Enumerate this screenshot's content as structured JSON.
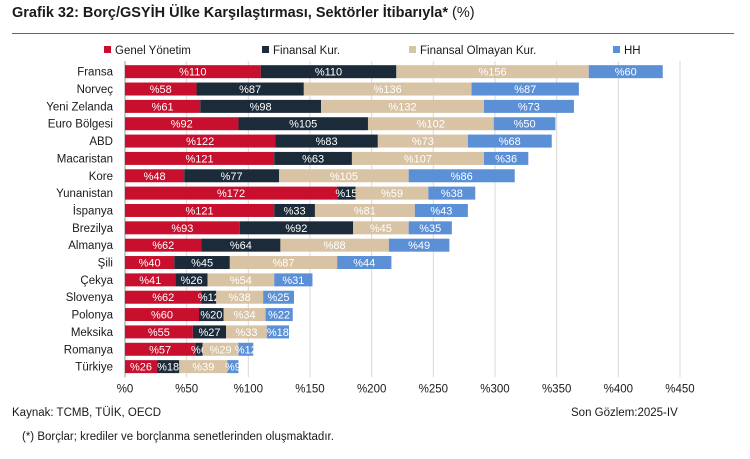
{
  "header": {
    "title": "Grafik 32: Borç/GSYİH Ülke Karşılaştırması, Sektörler İtibarıyla*",
    "unit": "(%)"
  },
  "footer": {
    "source": "Kaynak: TCMB, TÜİK, OECD",
    "observation": "Son Gözlem:2025-IV",
    "note": "(*) Borçlar; krediler ve borçlanma senetlerinden oluşmaktadır."
  },
  "chart_data": {
    "type": "bar",
    "orientation": "horizontal",
    "stacked": true,
    "value_prefix": "%",
    "categories": [
      "Fransa",
      "Norveç",
      "Yeni Zelanda",
      "Euro Bölgesi",
      "ABD",
      "Macaristan",
      "Kore",
      "Yunanistan",
      "İspanya",
      "Brezilya",
      "Almanya",
      "Şili",
      "Çekya",
      "Slovenya",
      "Polonya",
      "Meksika",
      "Romanya",
      "Türkiye"
    ],
    "series": [
      {
        "name": "Genel Yönetim",
        "color": "#c8102e",
        "values": [
          110,
          58,
          61,
          92,
          122,
          121,
          48,
          172,
          121,
          93,
          62,
          40,
          41,
          62,
          60,
          55,
          57,
          26
        ]
      },
      {
        "name": "Finansal Kur.",
        "color": "#1c2b39",
        "values": [
          110,
          87,
          98,
          105,
          83,
          63,
          77,
          15,
          33,
          92,
          64,
          45,
          26,
          12,
          20,
          27,
          6,
          18
        ]
      },
      {
        "name": "Finansal Olmayan Kur.",
        "color": "#d8c3a5",
        "values": [
          156,
          136,
          132,
          102,
          73,
          107,
          105,
          59,
          81,
          45,
          88,
          87,
          54,
          38,
          34,
          33,
          29,
          39
        ]
      },
      {
        "name": "HH",
        "color": "#5b8fd6",
        "values": [
          60,
          87,
          73,
          50,
          68,
          36,
          86,
          38,
          43,
          35,
          49,
          44,
          31,
          25,
          22,
          18,
          12,
          9
        ]
      }
    ],
    "x_ticks": [
      "%0",
      "%50",
      "%100",
      "%150",
      "%200",
      "%250",
      "%300",
      "%350",
      "%400",
      "%450"
    ],
    "xlim": [
      0,
      450
    ],
    "grid": "vertical",
    "legend_position": "top"
  }
}
